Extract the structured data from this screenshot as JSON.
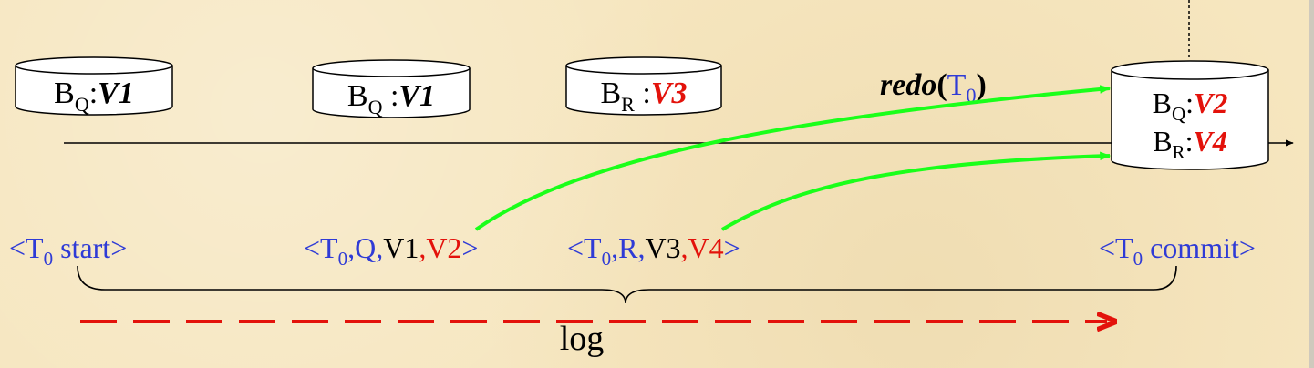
{
  "colors": {
    "blue": "#2f3bd6",
    "red": "#e3120b",
    "green": "#1aff1a",
    "black": "#000000",
    "background": "#f6e6bf"
  },
  "buffers": [
    {
      "block": "B",
      "sub": "Q",
      "sep": ":",
      "value": "V1"
    },
    {
      "block": "B",
      "sub": "Q",
      "sep": " :",
      "value": "V1"
    },
    {
      "block": "B",
      "sub": "R",
      "sep": " :",
      "value": "V3"
    }
  ],
  "disk": {
    "lines": [
      {
        "block": "B",
        "sub": "Q",
        "sep": ":",
        "value": "V2"
      },
      {
        "block": "B",
        "sub": "R",
        "sep": ":",
        "value": "V4"
      }
    ]
  },
  "redo": {
    "func": "redo",
    "open": "(",
    "txn": "T",
    "txn_sub": "0",
    "close": ")"
  },
  "log_records": {
    "start": {
      "lt": "<",
      "t": "T",
      "sub": "0",
      "label": " start",
      "gt": ">"
    },
    "q": {
      "lt": "<",
      "t": "T",
      "sub": "0",
      "item": ",Q,",
      "old": "V1",
      "comma": ",",
      "new": "V2",
      "gt": ">"
    },
    "r": {
      "lt": "<",
      "t": "T",
      "sub": "0",
      "item": ",R,",
      "old": "V3",
      "comma": ",",
      "new": "V4",
      "gt": ">"
    },
    "commit": {
      "lt": "<",
      "t": "T",
      "sub": "0",
      "label": " commit",
      "gt": ">"
    }
  },
  "log_label": "log"
}
